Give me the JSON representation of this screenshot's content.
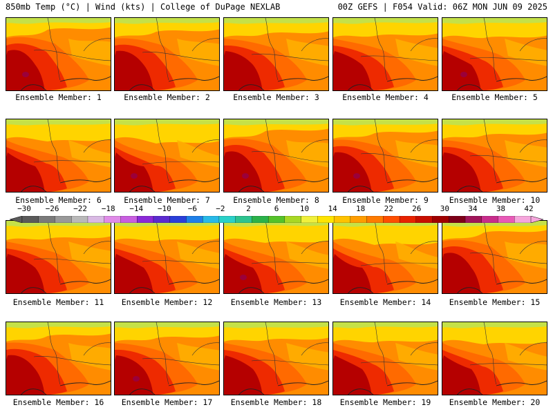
{
  "header": {
    "left": "850mb Temp (°C) | Wind (kts) | College of DuPage NEXLAB",
    "right": "00Z GEFS | F054 Valid: 06Z MON JUN 09 2025"
  },
  "member_label_prefix": "Ensemble Member: ",
  "members": [
    1,
    2,
    3,
    4,
    5,
    6,
    7,
    8,
    9,
    10,
    11,
    12,
    13,
    14,
    15,
    16,
    17,
    18,
    19,
    20
  ],
  "colorbar": {
    "ticks": [
      "−30",
      "−26",
      "−22",
      "−18",
      "−14",
      "−10",
      "−6",
      "−2",
      "2",
      "6",
      "10",
      "14",
      "18",
      "22",
      "26",
      "30",
      "34",
      "38",
      "42"
    ],
    "colors": [
      "#5a5a5a",
      "#7a7a7a",
      "#999999",
      "#b9b9b9",
      "#d9b9e4",
      "#e08be8",
      "#c85ee0",
      "#8b2ad8",
      "#5b2bd0",
      "#2a3fd9",
      "#1e7fe8",
      "#28b9e8",
      "#2ad1c8",
      "#2dc38f",
      "#2bb24a",
      "#55c22a",
      "#a8d824",
      "#f0f03c",
      "#ffe400",
      "#ffc200",
      "#ff9d00",
      "#ff7b00",
      "#ff4e00",
      "#e82200",
      "#c80e00",
      "#a00000",
      "#7d0018",
      "#a0155a",
      "#c82d8c",
      "#e85ab7",
      "#f5a6dc"
    ]
  },
  "map_palette": {
    "yellow": "#ffd400",
    "light_orange": "#ffb000",
    "orange": "#ff8c00",
    "dark_orange": "#ff6a00",
    "red": "#ee2a00",
    "dark_red": "#b50000",
    "purple": "#8b0060",
    "green": "#b7e35a"
  }
}
